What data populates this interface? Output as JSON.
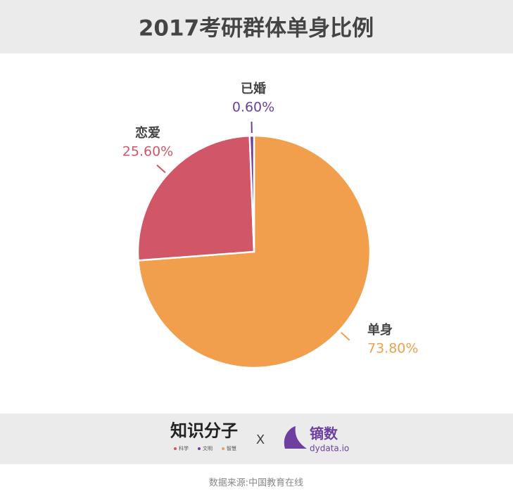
{
  "chart_data": {
    "type": "pie",
    "title": "2017考研群体单身比例",
    "categories": [
      "单身",
      "恋爱",
      "已婚"
    ],
    "values": [
      73.8,
      25.6,
      0.6
    ],
    "value_labels": [
      "73.80%",
      "25.60%",
      "0.60%"
    ],
    "colors": [
      "#f19f4d",
      "#d15667",
      "#6d3f9e"
    ],
    "footer": {
      "left_logo": "知识分子",
      "left_tags": [
        "科学",
        "文明",
        "智慧"
      ],
      "separator": "X",
      "right_logo": "镝数",
      "right_url": "dydata.io"
    },
    "source": "数据来源:中国教育在线"
  }
}
